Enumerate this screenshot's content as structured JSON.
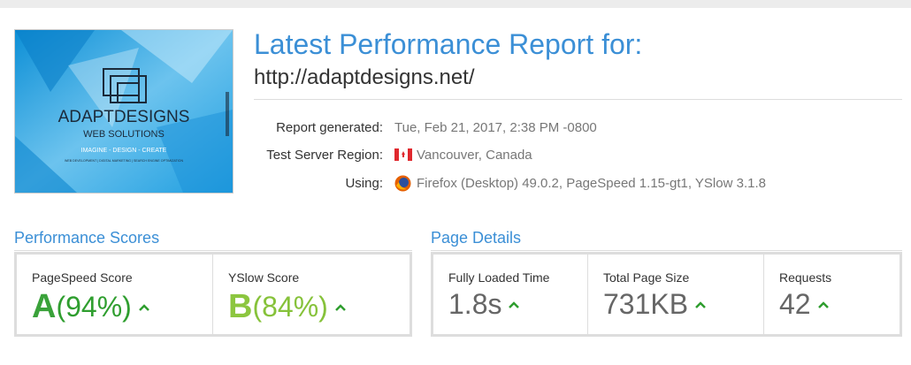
{
  "header": {
    "title": "Latest Performance Report for:",
    "url": "http://adaptdesigns.net/"
  },
  "thumbnail": {
    "brand": "ADAPTDESIGNS",
    "tagline": "WEB SOLUTIONS",
    "motto": "IMAGINE - DESIGN - CREATE",
    "services": "WEB DEVELOPMENT | DIGITAL MARKETING | SEARCH ENGINE OPTIMIZATION"
  },
  "report_info": [
    {
      "label": "Report generated:",
      "value": "Tue, Feb 21, 2017, 2:38 PM -0800"
    },
    {
      "label": "Test Server Region:",
      "value": "Vancouver, Canada"
    },
    {
      "label": "Using:",
      "value": "Firefox (Desktop) 49.0.2, PageSpeed 1.15-gt1, YSlow 3.1.8"
    }
  ],
  "performance_scores": {
    "title": "Performance Scores",
    "items": [
      {
        "label": "PageSpeed Score",
        "grade": "A",
        "value": "(94%)"
      },
      {
        "label": "YSlow Score",
        "grade": "B",
        "value": "(84%)"
      }
    ]
  },
  "page_details": {
    "title": "Page Details",
    "items": [
      {
        "label": "Fully Loaded Time",
        "value": "1.8s"
      },
      {
        "label": "Total Page Size",
        "value": "731KB"
      },
      {
        "label": "Requests",
        "value": "42"
      }
    ]
  }
}
